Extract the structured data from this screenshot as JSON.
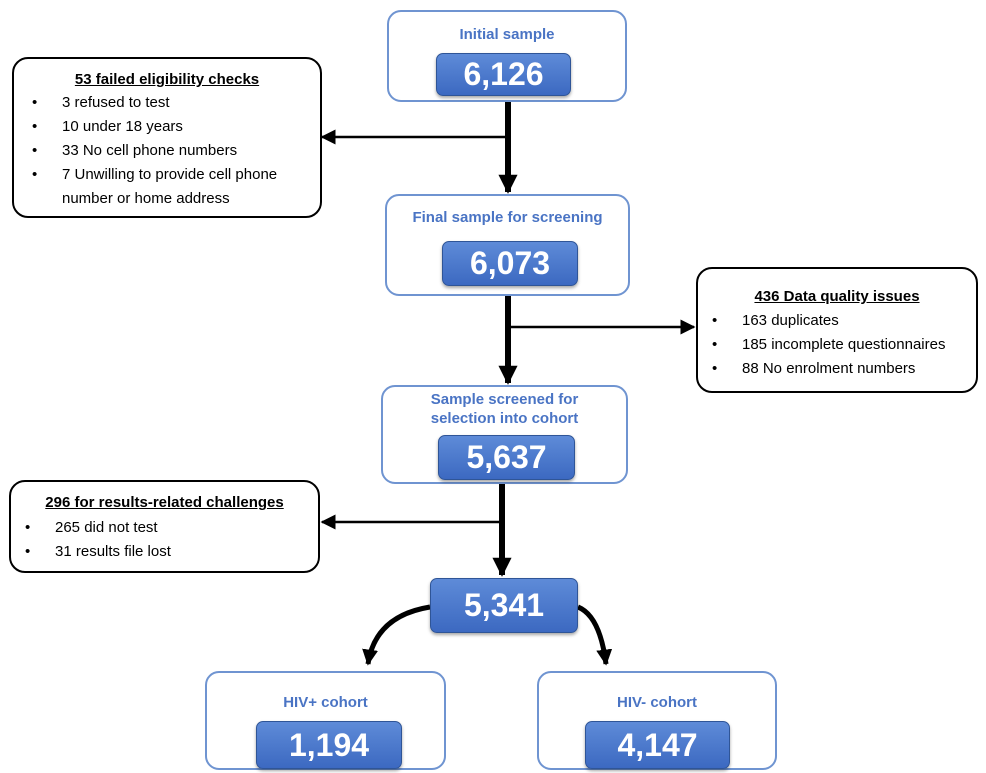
{
  "stages": {
    "initial": {
      "title": "Initial sample",
      "value": "6,126"
    },
    "final": {
      "title": "Final sample for screening",
      "value": "6,073"
    },
    "screened": {
      "title": "Sample screened for selection into cohort",
      "value": "5,637"
    },
    "cohort": {
      "value": "5,341"
    },
    "hiv_positive": {
      "title": "HIV+ cohort",
      "value": "1,194"
    },
    "hiv_negative": {
      "title": "HIV- cohort",
      "value": "4,147"
    }
  },
  "exclusions": {
    "eligibility": {
      "title": "53 failed eligibility checks",
      "items": [
        "3 refused to test",
        "10 under 18 years",
        "33 No cell phone numbers",
        "7 Unwilling to provide cell phone number or home address"
      ]
    },
    "data_quality": {
      "title": "436 Data quality issues",
      "items": [
        "163 duplicates",
        "185 incomplete questionnaires",
        "88 No enrolment numbers"
      ]
    },
    "results": {
      "title": "296 for results-related challenges",
      "items": [
        "265 did not test",
        "31 results file lost"
      ]
    }
  },
  "colors": {
    "stage_border": "#6f94d1",
    "stage_title": "#4a74c4",
    "number_box": "#4a76c9",
    "arrow": "#000000"
  }
}
